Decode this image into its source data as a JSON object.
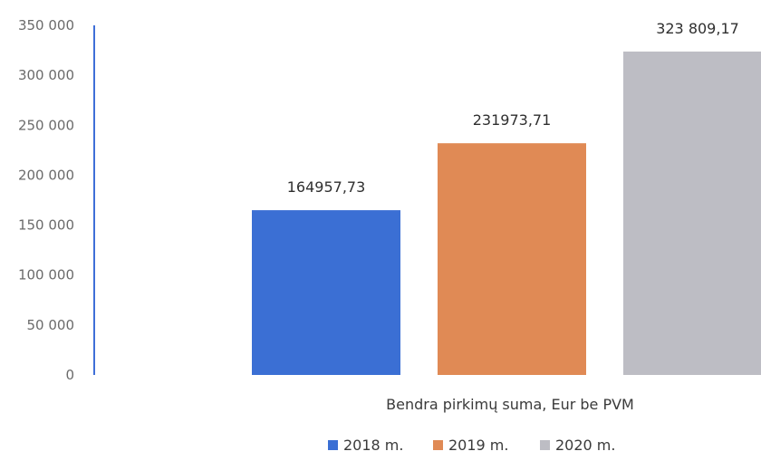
{
  "chart_data": {
    "type": "bar",
    "categories": [
      "Bendra pirkimų suma, Eur be PVM"
    ],
    "series": [
      {
        "name": "2018 m.",
        "values": [
          164957.73
        ],
        "color": "#3b6fd4",
        "label": "164957,73"
      },
      {
        "name": "2019 m.",
        "values": [
          231973.71
        ],
        "color": "#e08a55",
        "label": "231973,71"
      },
      {
        "name": "2020 m.",
        "values": [
          323809.17
        ],
        "color": "#bdbdc4",
        "label": "323 809,17"
      }
    ],
    "y_ticks": [
      {
        "value": 0,
        "label": "0"
      },
      {
        "value": 50000,
        "label": "50 000"
      },
      {
        "value": 100000,
        "label": "100 000"
      },
      {
        "value": 150000,
        "label": "150 000"
      },
      {
        "value": 200000,
        "label": "200 000"
      },
      {
        "value": 250000,
        "label": "250 000"
      },
      {
        "value": 300000,
        "label": "300 000"
      },
      {
        "value": 350000,
        "label": "350 000"
      }
    ],
    "ylim": [
      0,
      350000
    ],
    "axis_color": "#3f6fd8",
    "grid": false,
    "legend_position": "bottom"
  }
}
